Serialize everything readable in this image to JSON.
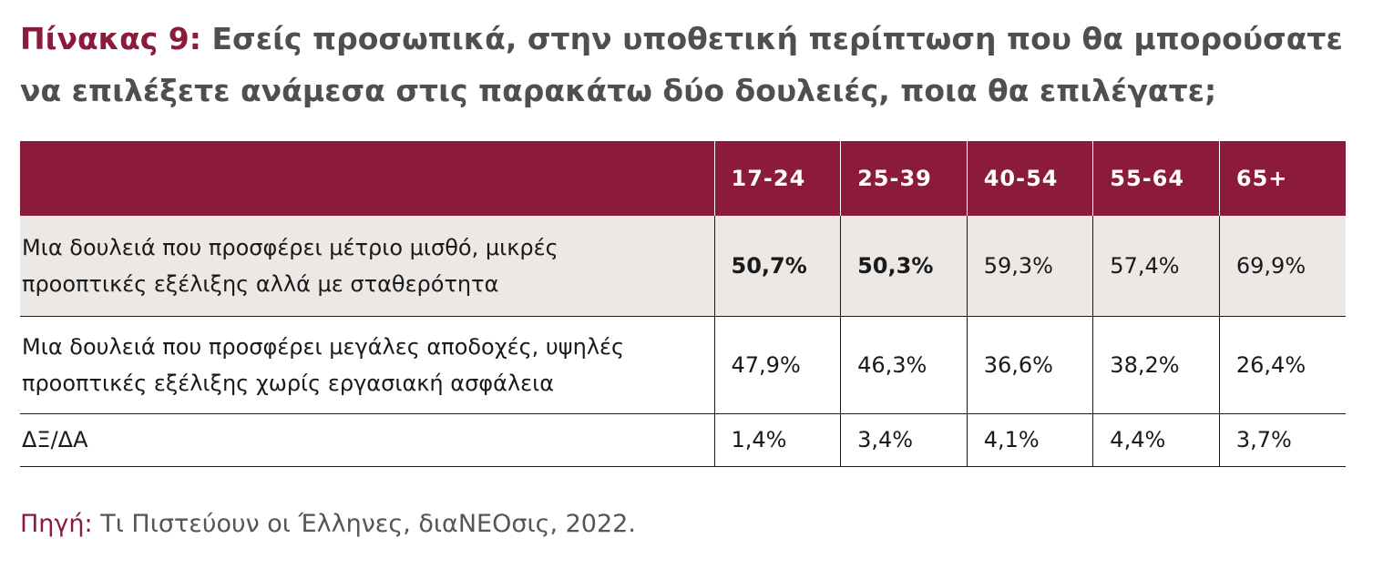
{
  "title": {
    "label": "Πίνακας 9:",
    "text": "Εσείς προσωπικά, στην υποθετική περίπτωση που θα μπορούσατε να επιλέξετε ανάμεσα στις παρακάτω δύο δουλειές, ποια θα επιλέγατε;"
  },
  "table": {
    "columns": [
      "17-24",
      "25-39",
      "40-54",
      "55-64",
      "65+"
    ],
    "rows": [
      {
        "label_line1": "Μια δουλειά που προσφέρει μέτριο μισθό, μικρές",
        "label_line2": "προοπτικές εξέλιξης αλλά με σταθερότητα",
        "values": [
          "50,7%",
          "50,3%",
          "59,3%",
          "57,4%",
          "69,9%"
        ]
      },
      {
        "label_line1": "Μια δουλειά που προσφέρει μεγάλες αποδοχές, υψηλές",
        "label_line2": "προοπτικές εξέλιξης χωρίς εργασιακή ασφάλεια",
        "values": [
          "47,9%",
          "46,3%",
          "36,6%",
          "38,2%",
          "26,4%"
        ]
      },
      {
        "label_line1": "ΔΞ/ΔΑ",
        "values": [
          "1,4%",
          "3,4%",
          "4,1%",
          "4,4%",
          "3,7%"
        ]
      }
    ]
  },
  "source": {
    "label": "Πηγή:",
    "text": "Τι Πιστεύουν οι Έλληνες, διαΝΕΟσις, 2022."
  },
  "colors": {
    "accent": "#8c1a3a",
    "title_text": "#4f4f4f",
    "row_highlight": "#ebe8e6"
  }
}
